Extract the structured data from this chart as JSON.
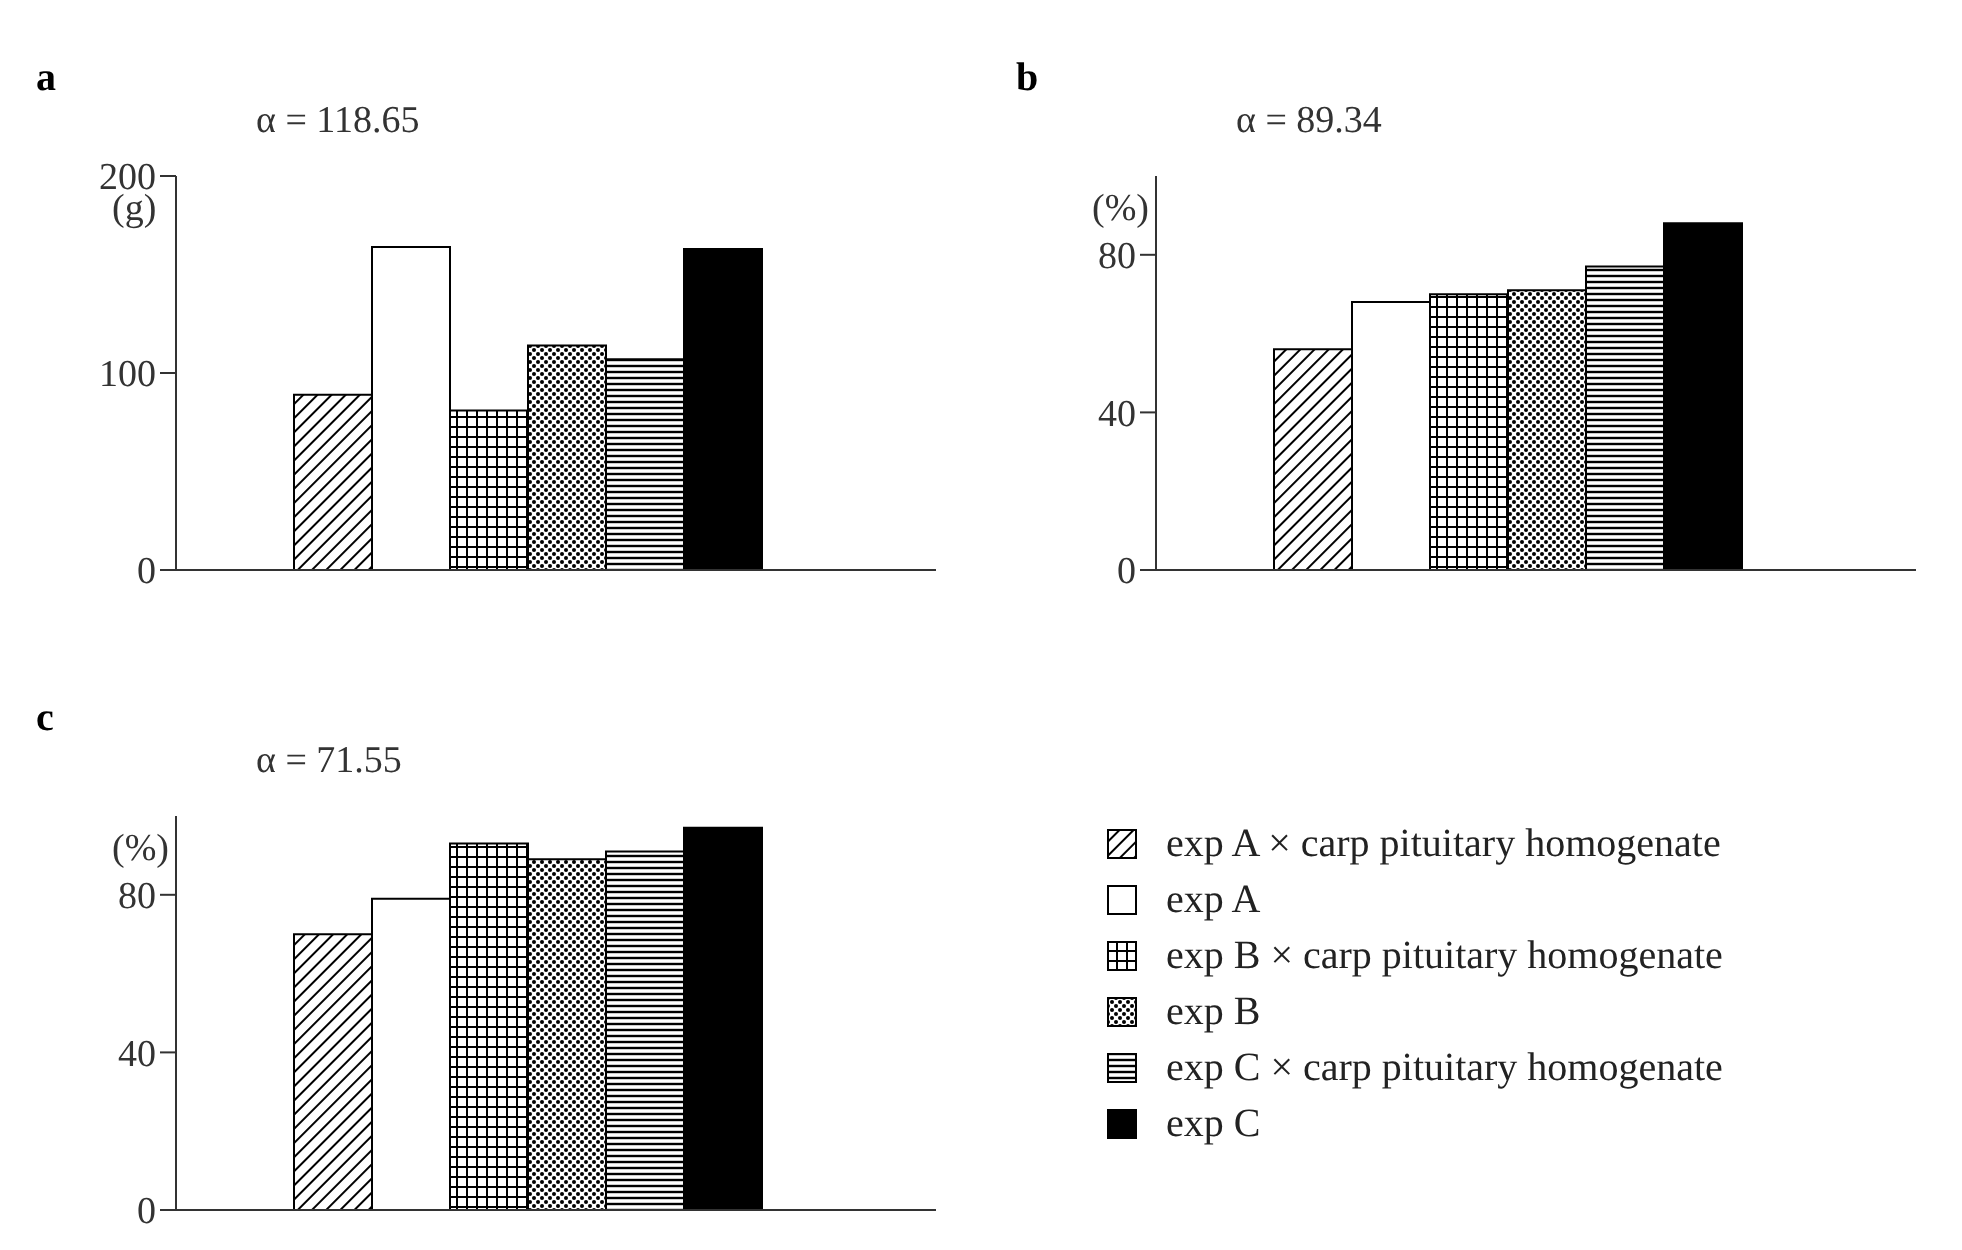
{
  "chart_data": [
    {
      "type": "bar",
      "title": "a",
      "subtitle": "α = 118.65",
      "ylabel": "(g)",
      "categories": [
        null
      ],
      "ylim": [
        0,
        200
      ],
      "yticks": [
        0,
        100,
        200
      ],
      "grid": false,
      "legend": false,
      "series": [
        {
          "color": "#000000",
          "values": [
            89
          ]
        },
        {
          "color": "#ffffff",
          "values": [
            164
          ]
        },
        {
          "color": "#000000",
          "values": [
            81
          ]
        },
        {
          "color": "#000000",
          "values": [
            114
          ]
        },
        {
          "color": "#000000",
          "values": [
            107
          ]
        },
        {
          "color": "#000000",
          "values": [
            163
          ]
        }
      ]
    },
    {
      "type": "bar",
      "title": "b",
      "subtitle": "α = 89.34",
      "ylabel": "(%)",
      "categories": [
        null
      ],
      "ylim": [
        0,
        100
      ],
      "yticks": [
        0,
        40,
        80
      ],
      "grid": false,
      "legend": false,
      "series": [
        {
          "color": "#000000",
          "values": [
            56
          ]
        },
        {
          "color": "#ffffff",
          "values": [
            68
          ]
        },
        {
          "color": "#000000",
          "values": [
            70
          ]
        },
        {
          "color": "#000000",
          "values": [
            71
          ]
        },
        {
          "color": "#000000",
          "values": [
            77
          ]
        },
        {
          "color": "#000000",
          "values": [
            88
          ]
        }
      ]
    },
    {
      "type": "bar",
      "title": "c",
      "subtitle": "α = 71.55",
      "ylabel": "(%)",
      "categories": [
        null
      ],
      "ylim": [
        0,
        100
      ],
      "yticks": [
        0,
        40,
        80
      ],
      "grid": false,
      "legend": "right",
      "series": [
        {
          "name": "exp A × carp pituitary homogenate",
          "color": "#000000",
          "values": [
            70
          ]
        },
        {
          "name": "exp A",
          "color": "#ffffff",
          "values": [
            79
          ]
        },
        {
          "name": "exp B × carp pituitary homogenate",
          "color": "#000000",
          "values": [
            93
          ]
        },
        {
          "name": "exp B",
          "color": "#000000",
          "values": [
            89
          ]
        },
        {
          "name": "exp C × carp pituitary homogenate",
          "color": "#000000",
          "values": [
            91
          ]
        },
        {
          "name": "exp C",
          "color": "#000000",
          "values": [
            97
          ]
        }
      ]
    }
  ]
}
